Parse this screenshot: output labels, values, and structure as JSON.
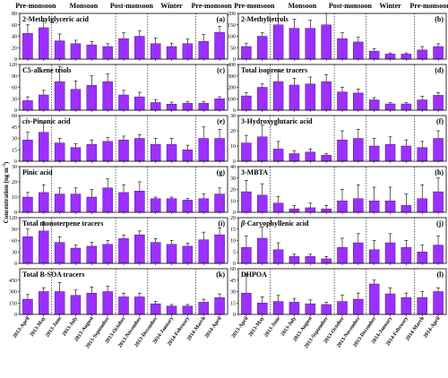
{
  "figure": {
    "ylabel": "Concentration (ng m",
    "ylabel_sup": "-3",
    "ylabel_close": ")",
    "months": [
      "2013-April",
      "2013-May",
      "2013-June",
      "2013-July",
      "2013-August",
      "2013-September",
      "2013-October",
      "2013-November",
      "2013-December",
      "2014-January",
      "2014-February",
      "2014-March",
      "2014-April"
    ],
    "dividers_after_index": [
      1,
      5,
      7,
      10
    ],
    "seasons_left": [
      {
        "label": "Pre-monsoon",
        "start": 0,
        "end": 1
      },
      {
        "label": "Monsoon",
        "start": 2,
        "end": 5
      },
      {
        "label": "Post-monsoon",
        "start": 6,
        "end": 7
      },
      {
        "label": "Winter",
        "start": 8,
        "end": 10
      },
      {
        "label": "Pre-monsoon",
        "start": 11,
        "end": 12
      }
    ],
    "seasons_right": [
      {
        "label": "Pre-monsoon",
        "start": 0,
        "end": 1
      },
      {
        "label": "Monsoon",
        "start": 2,
        "end": 5
      },
      {
        "label": "Post-monsoon",
        "start": 6,
        "end": 7
      },
      {
        "label": "Winter",
        "start": 8,
        "end": 10
      },
      {
        "label": "Pre-monsoon",
        "start": 11,
        "end": 12
      }
    ]
  },
  "colors": {
    "bar": "#9b30ff"
  },
  "chart_data": [
    {
      "type": "bar",
      "letter": "(a)",
      "title": "2-Methylglyceric acid",
      "title_italic": "",
      "col": 0,
      "row": 0,
      "ylim": [
        0,
        80
      ],
      "yticks": [
        0,
        20,
        40,
        60,
        80
      ],
      "values": [
        45,
        55,
        32,
        27,
        25,
        22,
        36,
        40,
        27,
        22,
        27,
        31,
        47
      ],
      "errors": [
        15,
        12,
        12,
        6,
        6,
        5,
        10,
        10,
        10,
        6,
        8,
        12,
        10
      ]
    },
    {
      "type": "bar",
      "letter": "(b)",
      "title": "2-Methyltetrols",
      "title_italic": "",
      "col": 1,
      "row": 0,
      "ylim": [
        0,
        200
      ],
      "yticks": [
        0,
        50,
        100,
        150,
        200
      ],
      "values": [
        55,
        100,
        150,
        135,
        135,
        150,
        90,
        75,
        35,
        22,
        22,
        40,
        55
      ],
      "errors": [
        15,
        15,
        60,
        40,
        35,
        50,
        25,
        20,
        10,
        5,
        5,
        15,
        12
      ]
    },
    {
      "type": "bar",
      "letter": "(c)",
      "title": "C5-alkene triols",
      "title_italic": "",
      "col": 0,
      "row": 1,
      "ylim": [
        0,
        120
      ],
      "yticks": [
        0,
        30,
        60,
        90,
        120
      ],
      "values": [
        25,
        40,
        75,
        55,
        65,
        75,
        40,
        35,
        20,
        16,
        18,
        18,
        30
      ],
      "errors": [
        10,
        12,
        40,
        22,
        25,
        20,
        12,
        12,
        8,
        5,
        5,
        5,
        5
      ]
    },
    {
      "type": "bar",
      "letter": "(d)",
      "title": "Total isoprene tracers",
      "title_italic": "",
      "col": 1,
      "row": 1,
      "ylim": [
        0,
        400
      ],
      "yticks": [
        0,
        100,
        200,
        300,
        400
      ],
      "values": [
        125,
        200,
        250,
        220,
        230,
        250,
        160,
        150,
        90,
        55,
        55,
        90,
        130
      ],
      "errors": [
        30,
        30,
        90,
        60,
        60,
        60,
        40,
        35,
        20,
        10,
        10,
        30,
        25
      ]
    },
    {
      "type": "bar",
      "letter": "(e)",
      "title": "-Pinonic acid",
      "title_italic": "cis",
      "col": 0,
      "row": 2,
      "ylim": [
        0,
        60
      ],
      "yticks": [
        0,
        15,
        30,
        45,
        60
      ],
      "values": [
        28,
        38,
        24,
        18,
        22,
        26,
        28,
        30,
        22,
        22,
        15,
        30,
        30
      ],
      "errors": [
        10,
        12,
        6,
        5,
        6,
        5,
        5,
        5,
        8,
        8,
        6,
        15,
        12
      ]
    },
    {
      "type": "bar",
      "letter": "(f)",
      "title": "3-Hydroxyglutaric acid",
      "title_italic": "",
      "col": 1,
      "row": 2,
      "ylim": [
        0,
        30
      ],
      "yticks": [
        0,
        10,
        20,
        30
      ],
      "values": [
        12,
        16,
        8,
        5,
        6,
        4,
        14,
        15,
        10,
        11,
        10,
        9,
        15
      ],
      "errors": [
        5,
        8,
        5,
        2,
        2,
        1,
        6,
        6,
        5,
        5,
        4,
        4,
        5
      ]
    },
    {
      "type": "bar",
      "letter": "(g)",
      "title": "Pinic acid",
      "title_italic": "",
      "col": 0,
      "row": 3,
      "ylim": [
        0,
        30
      ],
      "yticks": [
        0,
        10,
        20,
        30
      ],
      "values": [
        10,
        13,
        12,
        12,
        10,
        16,
        13,
        14,
        9,
        9,
        8,
        9,
        12
      ],
      "errors": [
        3,
        5,
        4,
        4,
        5,
        6,
        5,
        6,
        1,
        1,
        1,
        3,
        4
      ]
    },
    {
      "type": "bar",
      "letter": "(h)",
      "title": "3-MBTA",
      "title_italic": "",
      "col": 1,
      "row": 3,
      "ylim": [
        0,
        40
      ],
      "yticks": [
        0,
        10,
        20,
        30,
        40
      ],
      "values": [
        18,
        15,
        8,
        3,
        4,
        3,
        10,
        12,
        10,
        10,
        6,
        12,
        18
      ],
      "errors": [
        10,
        10,
        6,
        3,
        4,
        3,
        10,
        12,
        12,
        12,
        10,
        12,
        12
      ]
    },
    {
      "type": "bar",
      "letter": "(i)",
      "title": "Total monoterpene tracers",
      "title_italic": "",
      "col": 0,
      "row": 4,
      "ylim": [
        0,
        120
      ],
      "yticks": [
        0,
        30,
        60,
        90,
        120
      ],
      "values": [
        70,
        85,
        55,
        40,
        45,
        50,
        65,
        75,
        55,
        50,
        45,
        62,
        75
      ],
      "errors": [
        20,
        25,
        15,
        8,
        10,
        10,
        10,
        10,
        10,
        10,
        8,
        20,
        18
      ]
    },
    {
      "type": "bar",
      "letter": "(j)",
      "title": "-Caryophyllenic acid",
      "title_italic": "β",
      "col": 1,
      "row": 4,
      "ylim": [
        0,
        20
      ],
      "yticks": [
        0,
        5,
        10,
        15,
        20
      ],
      "values": [
        7,
        11,
        6,
        3,
        3,
        2,
        7,
        9,
        6,
        9,
        7,
        5,
        8
      ],
      "errors": [
        5,
        5,
        3,
        1,
        1,
        1,
        4,
        4,
        4,
        4,
        3,
        3,
        4
      ]
    },
    {
      "type": "bar",
      "letter": "(k)",
      "title": "Total B-SOA tracers",
      "title_italic": "",
      "col": 0,
      "row": 5,
      "ylim": [
        0,
        600
      ],
      "yticks": [
        0,
        150,
        300,
        450
      ],
      "values": [
        200,
        300,
        300,
        250,
        280,
        300,
        230,
        230,
        140,
        110,
        110,
        160,
        220
      ],
      "errors": [
        60,
        50,
        120,
        70,
        80,
        70,
        50,
        50,
        30,
        20,
        20,
        40,
        50
      ]
    },
    {
      "type": "bar",
      "letter": "(l)",
      "title": "DHPOA",
      "title_italic": "",
      "col": 1,
      "row": 5,
      "ylim": [
        0,
        60
      ],
      "yticks": [
        0,
        15,
        30,
        45,
        60
      ],
      "values": [
        28,
        15,
        17,
        16,
        14,
        13,
        17,
        20,
        40,
        27,
        22,
        22,
        30
      ],
      "errors": [
        25,
        8,
        8,
        5,
        5,
        3,
        8,
        8,
        5,
        8,
        6,
        8,
        5
      ]
    }
  ]
}
